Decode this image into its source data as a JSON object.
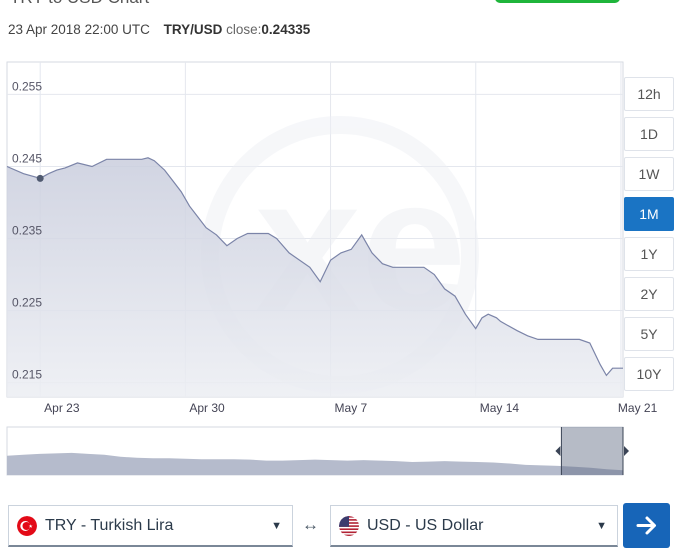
{
  "header": {
    "title": "TRY to USD Chart"
  },
  "info": {
    "datetime": "23 Apr 2018 22:00 UTC",
    "pair": "TRY/USD",
    "close_label": "close:",
    "close_value": "0.24335"
  },
  "ranges": [
    {
      "label": "12h",
      "active": false
    },
    {
      "label": "1D",
      "active": false
    },
    {
      "label": "1W",
      "active": false
    },
    {
      "label": "1M",
      "active": true
    },
    {
      "label": "1Y",
      "active": false
    },
    {
      "label": "2Y",
      "active": false
    },
    {
      "label": "5Y",
      "active": false
    },
    {
      "label": "10Y",
      "active": false
    }
  ],
  "converter": {
    "from": {
      "label": "TRY - Turkish Lira",
      "flag_icon": "turkey-flag-icon"
    },
    "swap_symbol": "↔",
    "to": {
      "label": "USD - US Dollar",
      "flag_icon": "us-flag-icon"
    },
    "go_icon": "arrow-right-icon"
  },
  "colors": {
    "line": "#7b84a8",
    "area_top": "#c9cddd",
    "area_bottom": "#eceef3",
    "active_range": "#1a74c4",
    "go_button": "#1765b8",
    "green_button": "#1fb53b"
  },
  "chart_data": {
    "type": "area",
    "title": "",
    "xlabel": "",
    "ylabel": "",
    "x_tick_labels": [
      "Apr 23",
      "Apr 30",
      "May 7",
      "May 14",
      "May 21"
    ],
    "x_ticks_day": [
      0,
      7,
      14,
      21,
      28
    ],
    "y_tick_labels": [
      "0.255",
      "0.245",
      "0.235",
      "0.225",
      "0.215"
    ],
    "y_ticks": [
      0.255,
      0.245,
      0.235,
      0.225,
      0.215
    ],
    "ylim": [
      0.213,
      0.2595
    ],
    "xlim": [
      -1.6,
      28.1
    ],
    "grid": true,
    "highlight_point": {
      "x": 0,
      "y": 0.24335
    },
    "series": [
      {
        "x": [
          -1.6,
          -0.8,
          0,
          0.4,
          0.8,
          1.2,
          1.8,
          2.5,
          3.2,
          3.8,
          4.5,
          4.9,
          5.2,
          5.5,
          6.0,
          6.4,
          6.8,
          7.2,
          7.6,
          8.0,
          8.5,
          9.0,
          9.5,
          10.0,
          10.5,
          11.0,
          11.4,
          12.0,
          13.0,
          13.5,
          14.0,
          14.5,
          15.0,
          15.5,
          16.0,
          16.5,
          17.0,
          17.5,
          18.0,
          18.5,
          19.0,
          19.5,
          20.0,
          20.5,
          21.0,
          21.3,
          21.6,
          22.0,
          22.2,
          22.5,
          23.0,
          23.5,
          24.0,
          24.5,
          25.0,
          25.5,
          26.0,
          26.5,
          27.0,
          27.3,
          27.6,
          28.1
        ],
        "y": [
          0.245,
          0.244,
          0.24335,
          0.244,
          0.2445,
          0.2448,
          0.2455,
          0.245,
          0.246,
          0.246,
          0.246,
          0.246,
          0.2462,
          0.2458,
          0.2445,
          0.243,
          0.2415,
          0.2395,
          0.238,
          0.2365,
          0.2355,
          0.234,
          0.235,
          0.2357,
          0.2357,
          0.2357,
          0.235,
          0.233,
          0.231,
          0.229,
          0.232,
          0.233,
          0.2335,
          0.2355,
          0.233,
          0.2315,
          0.231,
          0.231,
          0.231,
          0.231,
          0.23,
          0.228,
          0.227,
          0.2245,
          0.2225,
          0.224,
          0.2245,
          0.224,
          0.2235,
          0.223,
          0.2222,
          0.2215,
          0.221,
          0.221,
          0.221,
          0.221,
          0.221,
          0.2205,
          0.2175,
          0.216,
          0.217,
          0.217
        ]
      }
    ],
    "navigator": {
      "y": [
        0.4,
        0.42,
        0.44,
        0.45,
        0.46,
        0.44,
        0.42,
        0.38,
        0.36,
        0.35,
        0.35,
        0.34,
        0.33,
        0.33,
        0.33,
        0.32,
        0.3,
        0.3,
        0.31,
        0.32,
        0.31,
        0.3,
        0.31,
        0.3,
        0.29,
        0.27,
        0.28,
        0.29,
        0.28,
        0.27,
        0.26,
        0.24,
        0.21,
        0.2,
        0.19,
        0.17,
        0.15,
        0.12,
        0.1
      ],
      "selection": [
        0.9,
        1.0
      ]
    }
  }
}
